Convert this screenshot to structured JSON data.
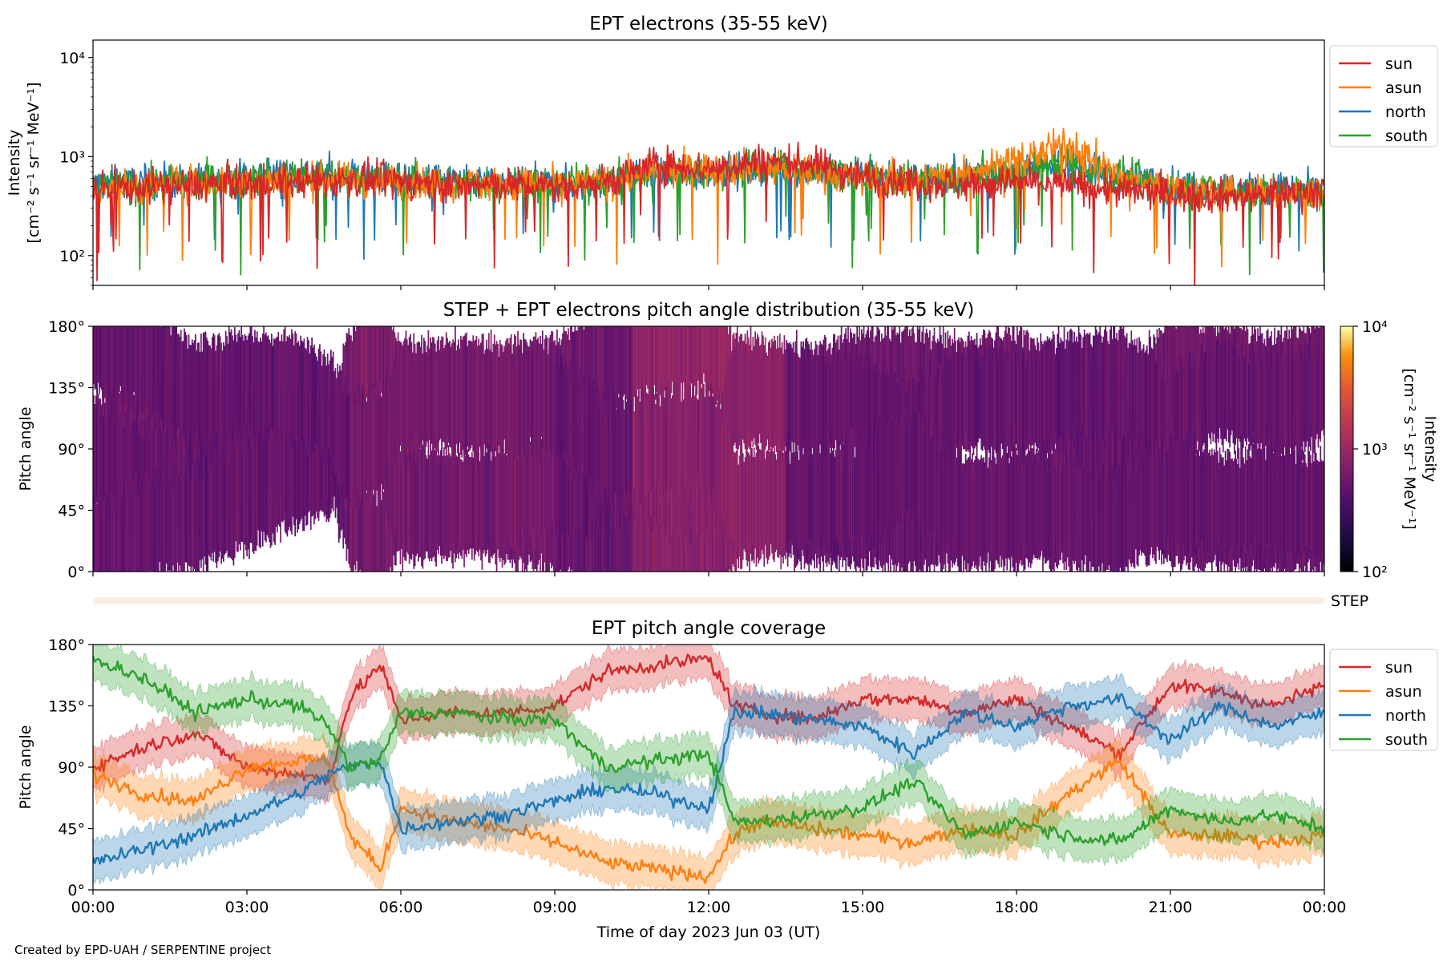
{
  "footer": "Created by EPD-UAH / SERPENTINE project",
  "xlabel": "Time of day 2023 Jun 03 (UT)",
  "x_ticks": [
    "00:00",
    "03:00",
    "06:00",
    "09:00",
    "12:00",
    "15:00",
    "18:00",
    "21:00",
    "00:00"
  ],
  "colors": {
    "sun": "#d62728",
    "asun": "#ff7f0e",
    "north": "#1f77b4",
    "south": "#2ca02c"
  },
  "chart_data": [
    {
      "type": "line",
      "title": "EPT electrons (35-55 keV)",
      "ylabel": "Intensity",
      "ylabel_units": "[cm⁻² s⁻¹ sr⁻¹ MeV⁻¹]",
      "yscale": "log",
      "ylim": [
        50,
        15000
      ],
      "yticks": [
        "10²",
        "10³",
        "10⁴"
      ],
      "xlim_hours": [
        0,
        24
      ],
      "legend": "outside-right",
      "series": [
        {
          "name": "sun",
          "color": "#d62728",
          "x": [
            0,
            1,
            2,
            3,
            4,
            5,
            6,
            7,
            8,
            9,
            10,
            11,
            12,
            13,
            14,
            15,
            16,
            17,
            18,
            19,
            20,
            21,
            22,
            23,
            24
          ],
          "y": [
            470,
            500,
            520,
            540,
            560,
            580,
            560,
            520,
            520,
            500,
            560,
            850,
            750,
            900,
            850,
            620,
            560,
            520,
            560,
            520,
            450,
            420,
            400,
            420,
            450
          ]
        },
        {
          "name": "asun",
          "color": "#ff7f0e",
          "x": [
            0,
            1,
            2,
            3,
            4,
            5,
            6,
            7,
            8,
            9,
            10,
            11,
            12,
            13,
            14,
            15,
            16,
            17,
            18,
            19,
            20,
            21,
            22,
            23,
            24
          ],
          "y": [
            480,
            500,
            540,
            560,
            580,
            580,
            560,
            540,
            520,
            520,
            560,
            700,
            750,
            800,
            720,
            600,
            560,
            700,
            900,
            1300,
            600,
            480,
            430,
            420,
            430
          ]
        },
        {
          "name": "north",
          "color": "#1f77b4",
          "x": [
            0,
            1,
            2,
            3,
            4,
            5,
            6,
            7,
            8,
            9,
            10,
            11,
            12,
            13,
            14,
            15,
            16,
            17,
            18,
            19,
            20,
            21,
            22,
            23,
            24
          ],
          "y": [
            520,
            540,
            580,
            620,
            700,
            650,
            600,
            560,
            540,
            520,
            560,
            650,
            700,
            750,
            700,
            640,
            600,
            650,
            700,
            800,
            600,
            520,
            480,
            460,
            470
          ]
        },
        {
          "name": "south",
          "color": "#2ca02c",
          "x": [
            0,
            1,
            2,
            3,
            4,
            5,
            6,
            7,
            8,
            9,
            10,
            11,
            12,
            13,
            14,
            15,
            16,
            17,
            18,
            19,
            20,
            21,
            22,
            23,
            24
          ],
          "y": [
            500,
            520,
            560,
            600,
            640,
            620,
            580,
            540,
            520,
            520,
            560,
            680,
            720,
            760,
            720,
            620,
            580,
            620,
            720,
            900,
            600,
            500,
            450,
            440,
            450
          ]
        }
      ]
    },
    {
      "type": "heatmap",
      "title": "STEP + EPT electrons pitch angle distribution (35-55 keV)",
      "ylabel": "Pitch angle",
      "yticks": [
        "0°",
        "45°",
        "90°",
        "135°",
        "180°"
      ],
      "ylim": [
        0,
        180
      ],
      "colorbar_label": "Intensity",
      "colorbar_units": "[cm⁻² s⁻¹ sr⁻¹ MeV⁻¹]",
      "colorbar_ticks": [
        "10²",
        "10³",
        "10⁴"
      ],
      "colorbar_range": [
        100,
        10000
      ],
      "colorscale": "inferno",
      "bands_deg": [
        [
          0,
          65
        ],
        [
          30,
          110
        ],
        [
          75,
          150
        ],
        [
          115,
          180
        ]
      ],
      "typical_intensity": 500,
      "step_label": "STEP"
    },
    {
      "type": "line",
      "title": "EPT pitch angle coverage",
      "ylabel": "Pitch angle",
      "yticks": [
        "0°",
        "45°",
        "90°",
        "135°",
        "180°"
      ],
      "ylim": [
        0,
        180
      ],
      "xlim_hours": [
        0,
        24
      ],
      "legend": "outside-right",
      "series": [
        {
          "name": "sun",
          "color": "#d62728",
          "x": [
            0,
            1,
            2,
            3,
            4,
            4.6,
            5,
            5.6,
            6,
            7,
            8,
            9,
            10,
            11,
            12,
            12.5,
            13,
            14,
            15,
            16,
            17,
            18,
            19,
            20,
            21,
            22,
            23,
            24
          ],
          "y": [
            90,
            105,
            115,
            90,
            85,
            80,
            140,
            165,
            125,
            130,
            130,
            135,
            160,
            165,
            170,
            135,
            130,
            125,
            140,
            140,
            130,
            140,
            120,
            100,
            150,
            145,
            135,
            150
          ]
        },
        {
          "name": "asun",
          "color": "#ff7f0e",
          "x": [
            0,
            1,
            2,
            3,
            4,
            4.6,
            5,
            5.6,
            6,
            7,
            8,
            9,
            10,
            11,
            12,
            12.5,
            13,
            14,
            15,
            16,
            17,
            18,
            19,
            20,
            21,
            22,
            23,
            24
          ],
          "y": [
            85,
            70,
            65,
            90,
            95,
            95,
            40,
            15,
            60,
            50,
            45,
            35,
            20,
            15,
            10,
            40,
            50,
            45,
            40,
            35,
            45,
            40,
            70,
            95,
            40,
            40,
            35,
            40
          ]
        },
        {
          "name": "north",
          "color": "#1f77b4",
          "x": [
            0,
            1,
            2,
            3,
            4,
            4.6,
            5,
            5.6,
            6,
            7,
            8,
            9,
            10,
            11,
            12,
            12.5,
            13,
            14,
            15,
            16,
            17,
            18,
            19,
            20,
            21,
            22,
            23,
            24
          ],
          "y": [
            20,
            30,
            40,
            55,
            70,
            85,
            90,
            95,
            45,
            50,
            55,
            65,
            75,
            70,
            60,
            130,
            130,
            125,
            120,
            100,
            130,
            120,
            135,
            140,
            110,
            135,
            120,
            130
          ]
        },
        {
          "name": "south",
          "color": "#2ca02c",
          "x": [
            0,
            1,
            2,
            3,
            4,
            4.6,
            5,
            5.6,
            6,
            7,
            8,
            9,
            10,
            11,
            12,
            12.5,
            13,
            14,
            15,
            16,
            17,
            18,
            19,
            20,
            21,
            22,
            23,
            24
          ],
          "y": [
            170,
            155,
            130,
            140,
            135,
            120,
            90,
            95,
            130,
            130,
            125,
            125,
            90,
            95,
            100,
            50,
            50,
            55,
            60,
            80,
            40,
            50,
            40,
            35,
            60,
            50,
            55,
            45
          ]
        }
      ]
    }
  ]
}
